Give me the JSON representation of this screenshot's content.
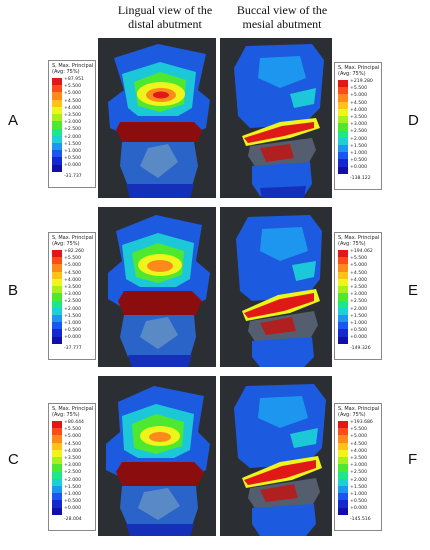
{
  "columns": {
    "left": [
      "Lingual view of the",
      "distal abutment"
    ],
    "right": [
      "Buccal view of the",
      "mesial abutment"
    ]
  },
  "legend": {
    "title": [
      "S, Max. Principal",
      "(Avg: 75%)"
    ],
    "colors": [
      "#e01818",
      "#ff4a1a",
      "#ff8a1c",
      "#ffc21a",
      "#eef51a",
      "#a8f01c",
      "#4ee830",
      "#1ce88a",
      "#1cd0d6",
      "#1c96ee",
      "#1c56f0",
      "#1428d0",
      "#1010a8"
    ],
    "ticks": [
      "+5.500",
      "+5.000",
      "+4.500",
      "+4.000",
      "+3.500",
      "+3.000",
      "+2.500",
      "+2.000",
      "+1.500",
      "+1.000",
      "+0.500",
      "+0.000"
    ]
  },
  "panels": [
    {
      "letter": "A",
      "max": "+87.951",
      "min": "-31.737"
    },
    {
      "letter": "B",
      "max": "+82.260",
      "min": "-37.777"
    },
    {
      "letter": "C",
      "max": "+80.444",
      "min": "-28.004"
    },
    {
      "letter": "D",
      "max": "+219.280",
      "min": "-138.122"
    },
    {
      "letter": "E",
      "max": "+194.062",
      "min": "-149.326"
    },
    {
      "letter": "F",
      "max": "+193.686",
      "min": "-145.516"
    }
  ]
}
